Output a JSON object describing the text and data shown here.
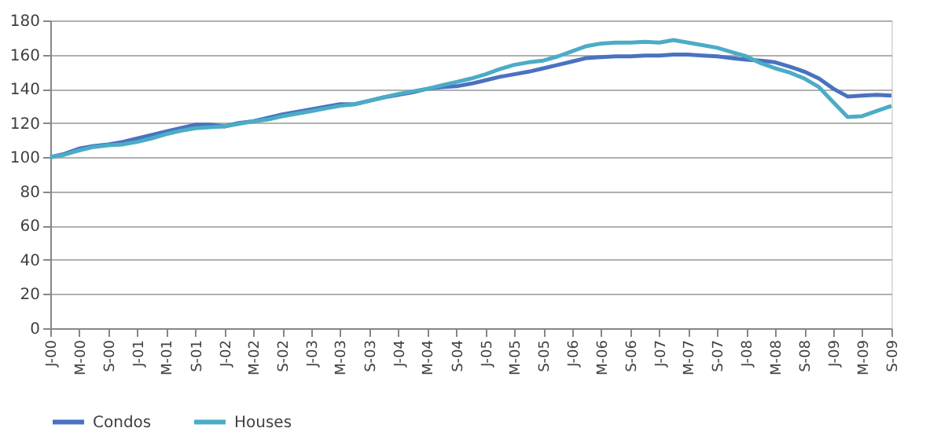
{
  "chart_data": {
    "type": "line",
    "x": [
      "2000-01",
      "2000-03",
      "2000-05",
      "2000-07",
      "2000-09",
      "2000-11",
      "2001-01",
      "2001-03",
      "2001-05",
      "2001-07",
      "2001-09",
      "2001-11",
      "2002-01",
      "2002-03",
      "2002-05",
      "2002-07",
      "2002-09",
      "2002-11",
      "2003-01",
      "2003-03",
      "2003-05",
      "2003-07",
      "2003-09",
      "2003-11",
      "2004-01",
      "2004-03",
      "2004-05",
      "2004-07",
      "2004-09",
      "2004-11",
      "2005-01",
      "2005-03",
      "2005-05",
      "2005-07",
      "2005-09",
      "2005-11",
      "2006-01",
      "2006-03",
      "2006-05",
      "2006-07",
      "2006-09",
      "2006-11",
      "2007-01",
      "2007-03",
      "2007-05",
      "2007-07",
      "2007-09",
      "2007-11",
      "2008-01",
      "2008-03",
      "2008-05",
      "2008-07",
      "2008-09",
      "2008-11",
      "2009-01",
      "2009-03",
      "2009-05",
      "2009-07",
      "2009-09"
    ],
    "series": [
      {
        "name": "Condos",
        "color": "#4a72c0",
        "values": [
          100,
          102,
          105,
          106.5,
          107.5,
          109,
          111,
          113,
          115,
          117,
          119,
          119,
          118,
          120,
          121,
          123,
          125,
          126.5,
          128,
          129.5,
          131,
          131,
          133,
          135,
          136.5,
          138,
          140,
          141,
          141.5,
          143,
          145,
          147,
          148.5,
          150,
          152,
          154,
          156,
          158,
          158.5,
          159,
          159,
          159.5,
          159.5,
          160,
          160,
          159.5,
          159,
          158,
          157,
          156.5,
          155.5,
          153,
          150,
          146,
          140,
          135.5,
          136,
          136.5,
          136
        ]
      },
      {
        "name": "Houses",
        "color": "#4bacc6",
        "values": [
          100,
          101.5,
          104,
          106,
          107,
          107.5,
          109,
          111,
          113.5,
          115.5,
          117,
          117.5,
          118,
          119.5,
          121,
          122,
          124,
          125.5,
          127,
          128.5,
          130,
          131,
          133,
          135,
          137,
          138.5,
          140,
          142,
          144,
          146,
          148.5,
          151.5,
          154,
          155.5,
          156.5,
          159,
          162,
          165,
          166.5,
          167,
          167,
          167.5,
          167,
          168.5,
          167,
          165.5,
          164,
          161.5,
          159,
          155,
          152,
          149.5,
          146,
          141,
          132,
          123.5,
          124,
          127,
          130
        ]
      }
    ],
    "xlim": [
      "2000-01",
      "2009-09"
    ],
    "xticks": [
      {
        "value": "2000-01",
        "label": "J-00"
      },
      {
        "value": "2000-05",
        "label": "M-00"
      },
      {
        "value": "2000-09",
        "label": "S-00"
      },
      {
        "value": "2001-01",
        "label": "J-01"
      },
      {
        "value": "2001-05",
        "label": "M-01"
      },
      {
        "value": "2001-09",
        "label": "S-01"
      },
      {
        "value": "2002-01",
        "label": "J-02"
      },
      {
        "value": "2002-05",
        "label": "M-02"
      },
      {
        "value": "2002-09",
        "label": "S-02"
      },
      {
        "value": "2003-01",
        "label": "J-03"
      },
      {
        "value": "2003-05",
        "label": "M-03"
      },
      {
        "value": "2003-09",
        "label": "S-03"
      },
      {
        "value": "2004-01",
        "label": "J-04"
      },
      {
        "value": "2004-05",
        "label": "M-04"
      },
      {
        "value": "2004-09",
        "label": "S-04"
      },
      {
        "value": "2005-01",
        "label": "J-05"
      },
      {
        "value": "2005-05",
        "label": "M-05"
      },
      {
        "value": "2005-09",
        "label": "S-05"
      },
      {
        "value": "2006-01",
        "label": "J-06"
      },
      {
        "value": "2006-05",
        "label": "M-06"
      },
      {
        "value": "2006-09",
        "label": "S-06"
      },
      {
        "value": "2007-01",
        "label": "J-07"
      },
      {
        "value": "2007-05",
        "label": "M-07"
      },
      {
        "value": "2007-09",
        "label": "S-07"
      },
      {
        "value": "2008-01",
        "label": "J-08"
      },
      {
        "value": "2008-05",
        "label": "M-08"
      },
      {
        "value": "2008-09",
        "label": "S-08"
      },
      {
        "value": "2009-01",
        "label": "J-09"
      },
      {
        "value": "2009-05",
        "label": "M-09"
      },
      {
        "value": "2009-09",
        "label": "S-09"
      }
    ],
    "ylim": [
      0,
      180
    ],
    "yticks": [
      0,
      20,
      40,
      60,
      80,
      100,
      120,
      140,
      160,
      180
    ],
    "grid": "y",
    "legend": "bottom",
    "marker": "none",
    "line_style": "solid"
  }
}
